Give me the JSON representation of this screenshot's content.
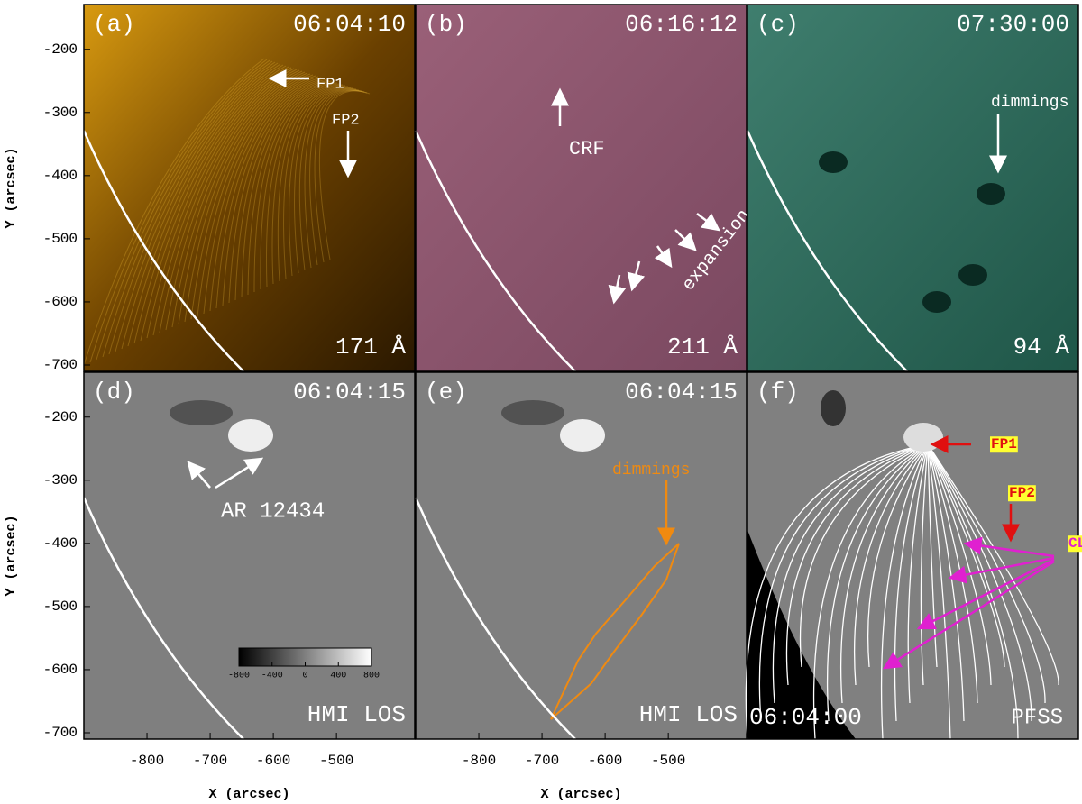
{
  "axes": {
    "ylabel": "Y (arcsec)",
    "xlabel": "X (arcsec)",
    "xlim": [
      -900,
      -376
    ],
    "ylim": [
      -710,
      -129
    ],
    "xticks": [
      -800,
      -700,
      -600,
      -500
    ],
    "yticks": [
      -200,
      -300,
      -400,
      -500,
      -600,
      -700
    ]
  },
  "panels": [
    {
      "label": "(a)",
      "time": "06:04:10",
      "channel": "171 Å",
      "annotations": [
        "FP1",
        "FP2"
      ]
    },
    {
      "label": "(b)",
      "time": "06:16:12",
      "channel": "211 Å",
      "annotations": [
        "CRF",
        "expansion"
      ]
    },
    {
      "label": "(c)",
      "time": "07:30:00",
      "channel": "94 Å",
      "annotations": [
        "dimmings"
      ]
    },
    {
      "label": "(d)",
      "time": "06:04:15",
      "channel": "HMI LOS",
      "annotations": [
        "AR 12434"
      ]
    },
    {
      "label": "(e)",
      "time": "06:04:15",
      "channel": "HMI LOS",
      "annotations": [
        "dimmings"
      ]
    },
    {
      "label": "(f)",
      "time": "06:04:00",
      "channel": "PFSS",
      "annotations": [
        "FP1",
        "FP2",
        "CLs"
      ]
    }
  ],
  "colorbar": {
    "ticks": [
      -800,
      -400,
      0,
      400,
      800
    ]
  }
}
